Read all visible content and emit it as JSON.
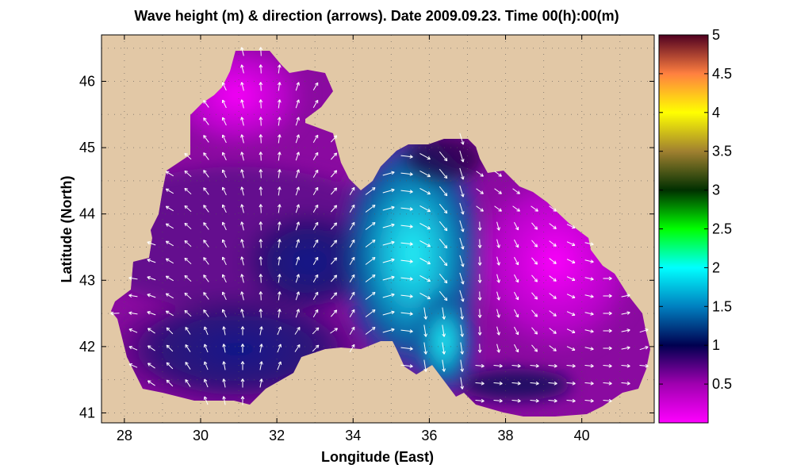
{
  "chart_data": {
    "type": "heatmap",
    "title": "Wave height (m) & direction (arrows). Date 2009.09.23. Time 00(h):00(m)",
    "xlabel": "Longitude (East)",
    "ylabel": "Latitude (North)",
    "xlim": [
      27.4,
      41.9
    ],
    "ylim": [
      40.85,
      46.7
    ],
    "x_ticks": [
      28,
      30,
      32,
      34,
      36,
      38,
      40
    ],
    "y_ticks": [
      41,
      42,
      43,
      44,
      45,
      46
    ],
    "grid": true,
    "grid_style": "dotted",
    "land_color": "#e2c8a6",
    "colorbar": {
      "ticks": [
        0.5,
        1,
        1.5,
        2,
        2.5,
        3,
        3.5,
        4,
        4.5,
        5
      ],
      "tick_labels": [
        "0.5",
        "1",
        "1.5",
        "2",
        "2.5",
        "3",
        "3.5",
        "4",
        "4.5",
        "5"
      ],
      "range": [
        0,
        5
      ],
      "colormap": [
        [
          0.0,
          "#ff00ff"
        ],
        [
          0.5,
          "#a000b0"
        ],
        [
          1.0,
          "#000050"
        ],
        [
          1.5,
          "#0080c0"
        ],
        [
          2.0,
          "#00ffff"
        ],
        [
          2.5,
          "#00ff00"
        ],
        [
          3.0,
          "#003000"
        ],
        [
          3.5,
          "#a08030"
        ],
        [
          4.0,
          "#ffff00"
        ],
        [
          4.5,
          "#ff8040"
        ],
        [
          5.0,
          "#500020"
        ]
      ]
    },
    "field": {
      "description_units": "wave height in m over the Black Sea basin",
      "peak_value": 1.85,
      "min_value": 0.05
    }
  }
}
